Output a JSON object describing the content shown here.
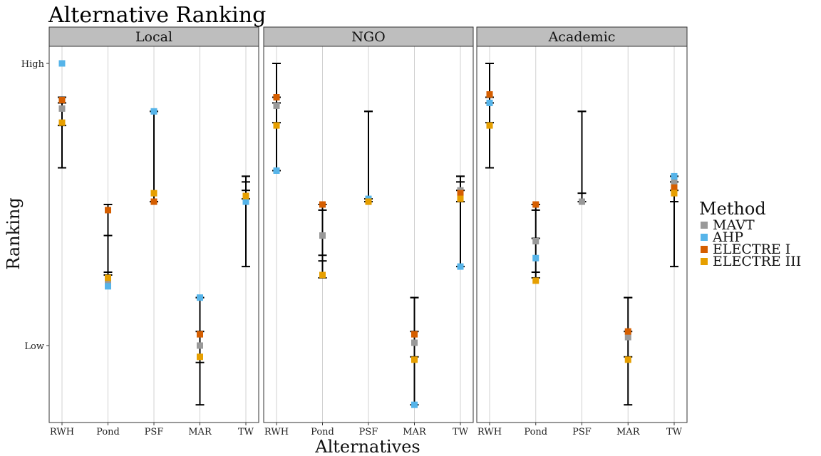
{
  "chart_data": {
    "type": "scatter",
    "title": "Alternative Ranking",
    "xlabel": "Alternatives",
    "ylabel": "Ranking",
    "categories": [
      "RWH",
      "Pond",
      "PSF",
      "MAR",
      "TW"
    ],
    "y_ticks": [
      {
        "value": 100,
        "label": "High"
      },
      {
        "value": 0,
        "label": "Low"
      }
    ],
    "ylim": [
      -22,
      101
    ],
    "grid": "vertical",
    "legend": {
      "title": "Method",
      "placement": "right",
      "entries": [
        {
          "name": "MAVT",
          "color": "#999999"
        },
        {
          "name": "AHP",
          "color": "#56B4E9"
        },
        {
          "name": "ELECTRE I",
          "color": "#D55E00"
        },
        {
          "name": "ELECTRE III",
          "color": "#E69F00"
        }
      ]
    },
    "panels": [
      {
        "name": "Local",
        "points": {
          "MAVT": [
            84,
            22,
            51,
            0,
            51
          ],
          "AHP": [
            100,
            21,
            83,
            17,
            51
          ],
          "ELECTRE I": [
            87,
            48,
            51,
            4,
            53
          ],
          "ELECTRE III": [
            79,
            24,
            54,
            -4,
            53
          ]
        },
        "errorbars": [
          {
            "ymin": 63,
            "ymax": 88,
            "ticks": [
              88,
              86,
              78
            ]
          },
          {
            "ymin": 25,
            "ymax": 50,
            "ticks": [
              50,
              39,
              26,
              25
            ]
          },
          {
            "ymin": 51,
            "ymax": 83,
            "ticks": [
              83,
              51
            ]
          },
          {
            "ymin": -21,
            "ymax": 17,
            "ticks": [
              17,
              5,
              -6
            ]
          },
          {
            "ymin": 28,
            "ymax": 60,
            "ticks": [
              60,
              58,
              55,
              52
            ]
          }
        ]
      },
      {
        "name": "NGO",
        "points": {
          "MAVT": [
            85,
            39,
            51,
            1,
            55
          ],
          "AHP": [
            62,
            50,
            52,
            -21,
            28
          ],
          "ELECTRE I": [
            88,
            50,
            51,
            4,
            54
          ],
          "ELECTRE III": [
            78,
            25,
            51,
            -5,
            52
          ]
        },
        "errorbars": [
          {
            "ymin": 62,
            "ymax": 100,
            "ticks": [
              100,
              88,
              86,
              79
            ]
          },
          {
            "ymin": 24,
            "ymax": 50,
            "ticks": [
              50,
              48,
              32,
              30
            ]
          },
          {
            "ymin": 51,
            "ymax": 83,
            "ticks": [
              83,
              52
            ]
          },
          {
            "ymin": -21,
            "ymax": 17,
            "ticks": [
              17,
              5,
              -4
            ]
          },
          {
            "ymin": 28,
            "ymax": 60,
            "ticks": [
              60,
              58,
              55,
              51
            ]
          }
        ]
      },
      {
        "name": "Academic",
        "points": {
          "MAVT": [
            86,
            37,
            51,
            3,
            58
          ],
          "AHP": [
            86,
            31,
            null,
            null,
            60
          ],
          "ELECTRE I": [
            89,
            50,
            null,
            5,
            56
          ],
          "ELECTRE III": [
            78,
            23,
            null,
            -5,
            54
          ]
        },
        "errorbars": [
          {
            "ymin": 63,
            "ymax": 100,
            "ticks": [
              100,
              88,
              86,
              79
            ]
          },
          {
            "ymin": 24,
            "ymax": 50,
            "ticks": [
              50,
              48,
              38,
              26
            ]
          },
          {
            "ymin": 51,
            "ymax": 83,
            "ticks": [
              83,
              54
            ]
          },
          {
            "ymin": -21,
            "ymax": 17,
            "ticks": [
              17,
              5,
              -4
            ]
          },
          {
            "ymin": 28,
            "ymax": 60,
            "ticks": [
              60,
              58,
              55,
              51
            ]
          }
        ]
      }
    ]
  }
}
